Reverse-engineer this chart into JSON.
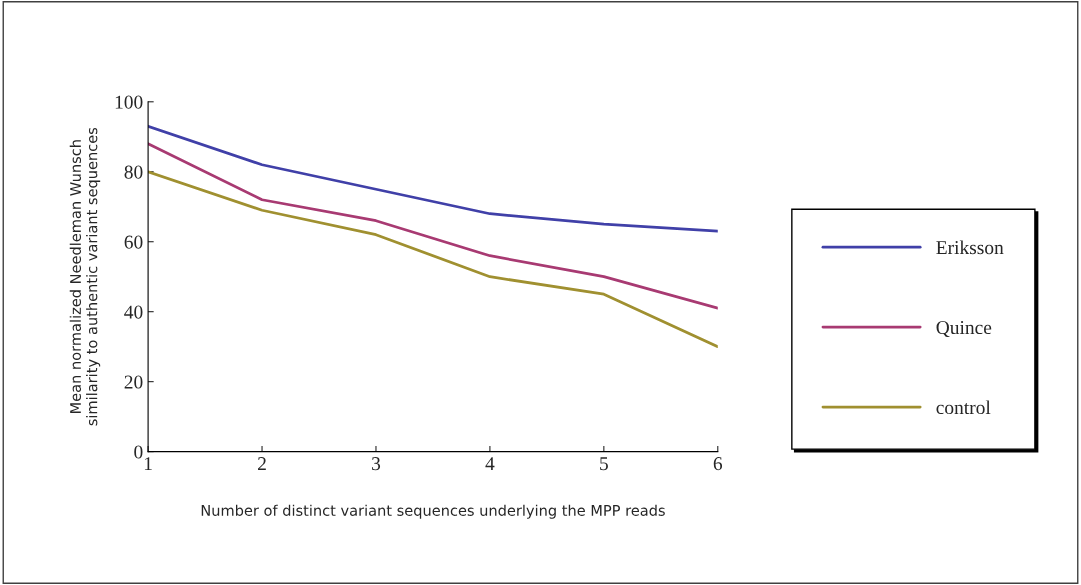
{
  "chart_data": {
    "type": "line",
    "xlabel": "Number of distinct variant sequences underlying the MPP reads",
    "ylabel": "Mean normalized Needleman Wunsch\nsimilarity to authentic variant sequences",
    "x": [
      1,
      2,
      3,
      4,
      5,
      6
    ],
    "series": [
      {
        "name": "Eriksson",
        "color": "#4040a8",
        "values": [
          93,
          82,
          75,
          68,
          65,
          63
        ]
      },
      {
        "name": "Quince",
        "color": "#a83a72",
        "values": [
          88,
          72,
          66,
          56,
          50,
          41
        ]
      },
      {
        "name": "control",
        "color": "#a09030",
        "values": [
          80,
          69,
          62,
          50,
          45,
          30
        ]
      }
    ],
    "xlim": [
      1,
      6
    ],
    "xticks": [
      1,
      2,
      3,
      4,
      5,
      6
    ],
    "ylim": [
      0,
      100
    ],
    "yticks": [
      0,
      20,
      40,
      60,
      80,
      100
    ],
    "grid": false,
    "legend": "right",
    "marker": "none",
    "line_style": "solid"
  }
}
